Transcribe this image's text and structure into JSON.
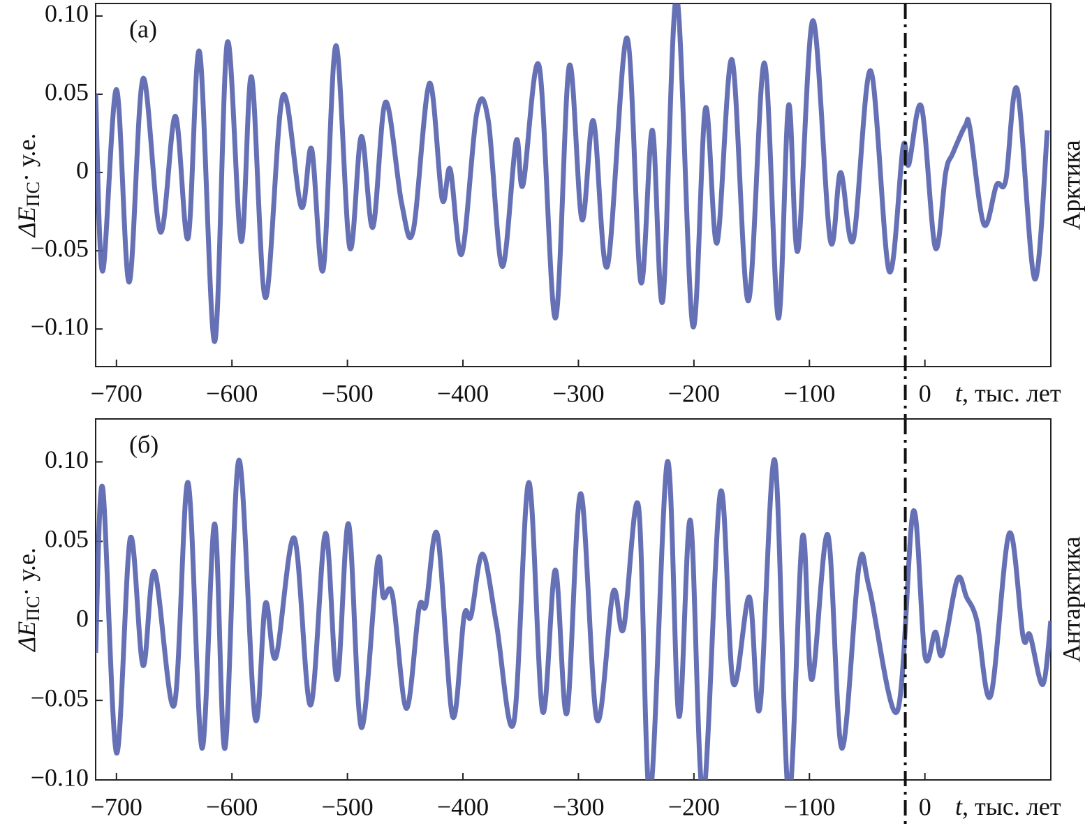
{
  "chart_data": [
    {
      "type": "line",
      "title": "(а)",
      "side_label": "Арктика",
      "y_label": {
        "symbol": "ΔE",
        "subscript": "ПС",
        "unit": "· у.е."
      },
      "x_label": {
        "symbol": "t",
        "text": ", тыс. лет"
      },
      "xlim": [
        -718,
        109
      ],
      "ylim": [
        -0.124,
        0.108
      ],
      "xticks": [
        {
          "value": -700,
          "label": "−700"
        },
        {
          "value": -600,
          "label": "−600"
        },
        {
          "value": -500,
          "label": "−500"
        },
        {
          "value": -400,
          "label": "−400"
        },
        {
          "value": -300,
          "label": "−300"
        },
        {
          "value": -200,
          "label": "−200"
        },
        {
          "value": -100,
          "label": "−100"
        },
        0
      ],
      "yticks": [
        {
          "value": 0.1,
          "label": "0.10"
        },
        0.05,
        0,
        {
          "value": -0.05,
          "label": "−0.05"
        },
        {
          "value": -0.1,
          "label": "−0.10"
        }
      ],
      "vline": -17,
      "series": [
        {
          "color": "#5562ad",
          "x": [
            -718,
            -712,
            -700,
            -689,
            -677,
            -662,
            -649,
            -638,
            -628,
            -615,
            -604,
            -592,
            -583,
            -571,
            -556,
            -540,
            -531,
            -521,
            -510,
            -498,
            -488,
            -478,
            -467,
            -453,
            -443,
            -429,
            -418,
            -411,
            -401,
            -388,
            -378,
            -366,
            -354,
            -348,
            -334,
            -320,
            -308,
            -297,
            -287,
            -275,
            -258,
            -246,
            -236,
            -227,
            -215,
            -201,
            -190,
            -180,
            -167,
            -153,
            -139,
            -127,
            -118,
            -110,
            -97,
            -82,
            -73,
            -62,
            -47,
            -31,
            -19,
            -14,
            -3,
            9,
            18,
            24,
            35,
            39,
            51,
            62,
            70,
            80,
            95,
            106
          ],
          "values": [
            0.05,
            -0.063,
            0.053,
            -0.07,
            0.06,
            -0.038,
            0.036,
            -0.042,
            0.077,
            -0.108,
            0.083,
            -0.044,
            0.061,
            -0.08,
            0.049,
            -0.022,
            0.015,
            -0.062,
            0.081,
            -0.048,
            0.023,
            -0.035,
            0.045,
            -0.02,
            -0.037,
            0.057,
            -0.017,
            0.002,
            -0.052,
            0.038,
            0.033,
            -0.06,
            0.02,
            -0.008,
            0.068,
            -0.093,
            0.068,
            -0.03,
            0.033,
            -0.06,
            0.086,
            -0.07,
            0.027,
            -0.082,
            0.112,
            -0.098,
            0.041,
            -0.045,
            0.072,
            -0.082,
            0.07,
            -0.093,
            0.043,
            -0.05,
            0.097,
            -0.043,
            0.0,
            -0.043,
            0.065,
            -0.063,
            0.016,
            0.005,
            0.042,
            -0.048,
            0.0,
            0.012,
            0.03,
            0.028,
            -0.033,
            -0.008,
            -0.005,
            0.053,
            -0.068,
            0.027
          ]
        }
      ]
    },
    {
      "type": "line",
      "title": "(б)",
      "side_label": "Антарктика",
      "y_label": {
        "symbol": "ΔE",
        "subscript": "ПС",
        "unit": "· у.е."
      },
      "x_label": {
        "symbol": "t",
        "text": ", тыс. лет"
      },
      "xlim": [
        -718,
        109
      ],
      "ylim": [
        -0.1,
        0.127
      ],
      "xticks": [
        {
          "value": -700,
          "label": "−700"
        },
        {
          "value": -600,
          "label": "−600"
        },
        {
          "value": -500,
          "label": "−500"
        },
        {
          "value": -400,
          "label": "−400"
        },
        {
          "value": -300,
          "label": "−300"
        },
        {
          "value": -200,
          "label": "−200"
        },
        {
          "value": -100,
          "label": "−100"
        },
        0
      ],
      "yticks": [
        {
          "value": 0.1,
          "label": "0.10"
        },
        0.05,
        0,
        {
          "value": -0.05,
          "label": "−0.05"
        },
        {
          "value": -0.1,
          "label": "−0.10"
        }
      ],
      "vline": -17,
      "series": [
        {
          "color": "#5562ad",
          "x": [
            -718,
            -712,
            -700,
            -688,
            -677,
            -667,
            -650,
            -638,
            -626,
            -615,
            -606,
            -594,
            -580,
            -571,
            -562,
            -546,
            -532,
            -519,
            -509,
            -499,
            -488,
            -474,
            -469,
            -461,
            -449,
            -438,
            -432,
            -422,
            -409,
            -399,
            -393,
            -383,
            -371,
            -356,
            -343,
            -331,
            -320,
            -310,
            -298,
            -284,
            -270,
            -261,
            -248,
            -238,
            -223,
            -213,
            -203,
            -192,
            -177,
            -166,
            -152,
            -143,
            -130,
            -118,
            -106,
            -98,
            -84,
            -72,
            -57,
            -48,
            -24,
            -10,
            0,
            9,
            15,
            28,
            36,
            45,
            57,
            73,
            85,
            91,
            102,
            109
          ],
          "values": [
            -0.02,
            0.084,
            -0.083,
            0.052,
            -0.028,
            0.031,
            -0.053,
            0.087,
            -0.08,
            0.061,
            -0.08,
            0.101,
            -0.061,
            0.011,
            -0.023,
            0.052,
            -0.053,
            0.055,
            -0.037,
            0.061,
            -0.067,
            0.037,
            0.015,
            0.016,
            -0.055,
            0.008,
            0.01,
            0.054,
            -0.06,
            0.003,
            0.003,
            0.042,
            -0.002,
            -0.064,
            0.087,
            -0.057,
            0.032,
            -0.058,
            0.08,
            -0.062,
            0.018,
            -0.005,
            0.072,
            -0.11,
            0.1,
            -0.06,
            0.063,
            -0.11,
            0.081,
            -0.039,
            0.015,
            -0.055,
            0.101,
            -0.11,
            0.053,
            -0.037,
            0.054,
            -0.08,
            0.035,
            0.02,
            -0.057,
            0.069,
            -0.022,
            -0.007,
            -0.021,
            0.026,
            0.015,
            0.0,
            -0.047,
            0.055,
            -0.01,
            -0.009,
            -0.04,
            0.0
          ]
        }
      ]
    }
  ]
}
